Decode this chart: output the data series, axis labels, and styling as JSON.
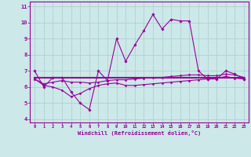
{
  "xlabel": "Windchill (Refroidissement éolien,°C)",
  "x_hours": [
    0,
    1,
    2,
    3,
    4,
    5,
    6,
    7,
    8,
    9,
    10,
    11,
    12,
    13,
    14,
    15,
    16,
    17,
    18,
    19,
    20,
    21,
    22,
    23
  ],
  "line1_y": [
    7.0,
    6.0,
    6.6,
    6.6,
    5.7,
    5.0,
    4.6,
    7.0,
    6.4,
    9.0,
    7.6,
    8.6,
    9.5,
    10.5,
    9.6,
    10.2,
    10.1,
    10.1,
    7.0,
    6.5,
    6.5,
    7.0,
    6.8,
    6.5
  ],
  "line2_y": [
    6.6,
    6.6,
    6.6,
    6.6,
    6.6,
    6.6,
    6.6,
    6.6,
    6.6,
    6.6,
    6.6,
    6.6,
    6.6,
    6.6,
    6.6,
    6.6,
    6.6,
    6.6,
    6.6,
    6.6,
    6.6,
    6.6,
    6.6,
    6.6
  ],
  "line3_y": [
    6.5,
    6.1,
    6.0,
    5.8,
    5.4,
    5.6,
    5.9,
    6.1,
    6.2,
    6.25,
    6.1,
    6.1,
    6.15,
    6.2,
    6.25,
    6.3,
    6.35,
    6.4,
    6.45,
    6.5,
    6.55,
    6.65,
    6.55,
    6.5
  ],
  "line4_y": [
    6.5,
    6.2,
    6.3,
    6.4,
    6.3,
    6.3,
    6.25,
    6.3,
    6.4,
    6.45,
    6.45,
    6.5,
    6.55,
    6.6,
    6.6,
    6.65,
    6.7,
    6.75,
    6.75,
    6.7,
    6.7,
    6.8,
    6.75,
    6.6
  ],
  "line_color": "#990099",
  "bg_color": "#cce8e8",
  "grid_color": "#aacece",
  "ylim": [
    3.8,
    11.3
  ],
  "yticks": [
    4,
    5,
    6,
    7,
    8,
    9,
    10,
    11
  ],
  "xticks": [
    0,
    1,
    2,
    3,
    4,
    5,
    6,
    7,
    8,
    9,
    10,
    11,
    12,
    13,
    14,
    15,
    16,
    17,
    18,
    19,
    20,
    21,
    22,
    23
  ]
}
